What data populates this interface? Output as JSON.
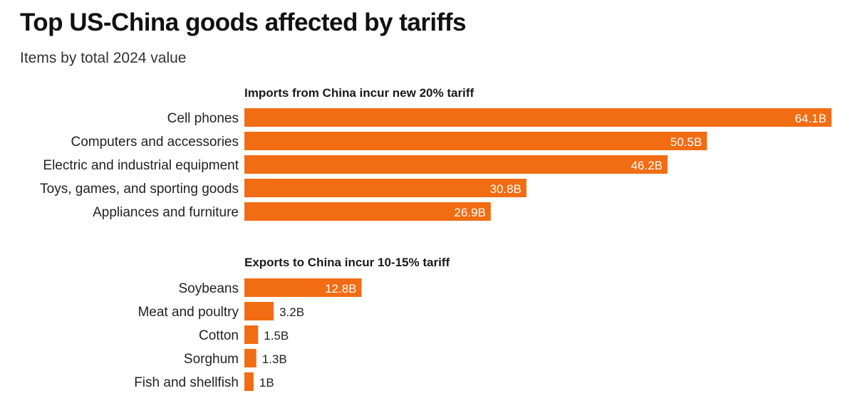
{
  "title": "Top US-China goods affected by tariffs",
  "subtitle": "Items by total 2024 value",
  "colors": {
    "bar": "#f26c13"
  },
  "chart_data": [
    {
      "type": "bar",
      "orientation": "horizontal",
      "title": "Imports from China incur new 20% tariff",
      "categories": [
        "Cell phones",
        "Computers and accessories",
        "Electric and industrial equipment",
        "Toys, games, and sporting goods",
        "Appliances and furniture"
      ],
      "values": [
        64.1,
        50.5,
        46.2,
        30.8,
        26.9
      ],
      "value_labels": [
        "64.1B",
        "50.5B",
        "46.2B",
        "30.8B",
        "26.9B"
      ],
      "unit": "B"
    },
    {
      "type": "bar",
      "orientation": "horizontal",
      "title": "Exports to China incur 10-15% tariff",
      "categories": [
        "Soybeans",
        "Meat and poultry",
        "Cotton",
        "Sorghum",
        "Fish and shellfish"
      ],
      "values": [
        12.8,
        3.2,
        1.5,
        1.3,
        1
      ],
      "value_labels": [
        "12.8B",
        "3.2B",
        "1.5B",
        "1.3B",
        "1B"
      ],
      "unit": "B"
    }
  ]
}
